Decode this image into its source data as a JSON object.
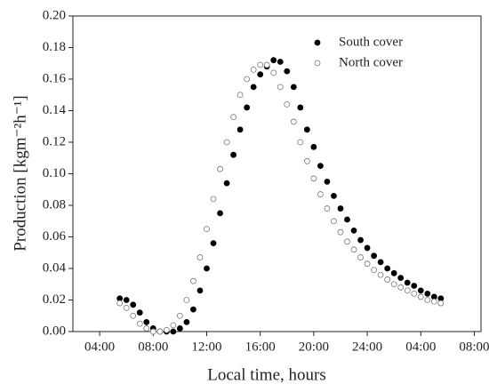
{
  "chart_data": {
    "type": "scatter",
    "xlabel": "Local time, hours",
    "ylabel": "Production [kgm⁻²h⁻¹]",
    "x": [
      5.5,
      6,
      6.5,
      7,
      7.5,
      8,
      8.5,
      9,
      9.5,
      10,
      10.5,
      11,
      11.5,
      12,
      12.5,
      13,
      13.5,
      14,
      14.5,
      15,
      15.5,
      16,
      16.5,
      17,
      17.5,
      18,
      18.5,
      19,
      19.5,
      20,
      20.5,
      21,
      21.5,
      22,
      22.5,
      23,
      23.5,
      24,
      24.5,
      25,
      25.5,
      26,
      26.5,
      27,
      27.5,
      28,
      28.5,
      29,
      29.5
    ],
    "series": [
      {
        "name": "South cover",
        "color": "#000000",
        "filled": true,
        "values": [
          0.021,
          0.02,
          0.017,
          0.012,
          0.006,
          0.002,
          0.0,
          0.0,
          0.0,
          0.002,
          0.006,
          0.014,
          0.026,
          0.04,
          0.056,
          0.075,
          0.094,
          0.112,
          0.128,
          0.142,
          0.155,
          0.163,
          0.168,
          0.172,
          0.171,
          0.165,
          0.155,
          0.142,
          0.128,
          0.117,
          0.105,
          0.095,
          0.086,
          0.078,
          0.071,
          0.064,
          0.058,
          0.053,
          0.048,
          0.044,
          0.04,
          0.037,
          0.034,
          0.031,
          0.029,
          0.026,
          0.024,
          0.022,
          0.021
        ]
      },
      {
        "name": "North cover",
        "color": "#777777",
        "filled": false,
        "values": [
          0.018,
          0.015,
          0.01,
          0.005,
          0.002,
          0.0,
          0.0,
          0.001,
          0.004,
          0.01,
          0.02,
          0.032,
          0.047,
          0.065,
          0.084,
          0.103,
          0.12,
          0.136,
          0.15,
          0.16,
          0.166,
          0.169,
          0.169,
          0.164,
          0.155,
          0.144,
          0.133,
          0.12,
          0.108,
          0.097,
          0.087,
          0.078,
          0.07,
          0.063,
          0.057,
          0.052,
          0.047,
          0.043,
          0.039,
          0.036,
          0.033,
          0.03,
          0.028,
          0.026,
          0.024,
          0.022,
          0.02,
          0.019,
          0.018
        ]
      }
    ],
    "xlim": [
      2,
      32.5
    ],
    "xticks": [
      {
        "value": 4,
        "label": "04:00"
      },
      {
        "value": 8,
        "label": "08:00"
      },
      {
        "value": 12,
        "label": "12:00"
      },
      {
        "value": 16,
        "label": "16:00"
      },
      {
        "value": 20,
        "label": "20:00"
      },
      {
        "value": 24,
        "label": "24:00"
      },
      {
        "value": 28,
        "label": "04:00"
      },
      {
        "value": 32,
        "label": "08:00"
      }
    ],
    "ylim": [
      0,
      0.2
    ],
    "yticks": [
      {
        "value": 0,
        "label": "0.00"
      },
      {
        "value": 0.02,
        "label": "0.02"
      },
      {
        "value": 0.04,
        "label": "0.04"
      },
      {
        "value": 0.06,
        "label": "0.06"
      },
      {
        "value": 0.08,
        "label": "0.08"
      },
      {
        "value": 0.1,
        "label": "0.10"
      },
      {
        "value": 0.12,
        "label": "0.12"
      },
      {
        "value": 0.14,
        "label": "0.14"
      },
      {
        "value": 0.16,
        "label": "0.16"
      },
      {
        "value": 0.18,
        "label": "0.18"
      },
      {
        "value": 0.2,
        "label": "0.20"
      }
    ],
    "legend": "upper-right"
  }
}
